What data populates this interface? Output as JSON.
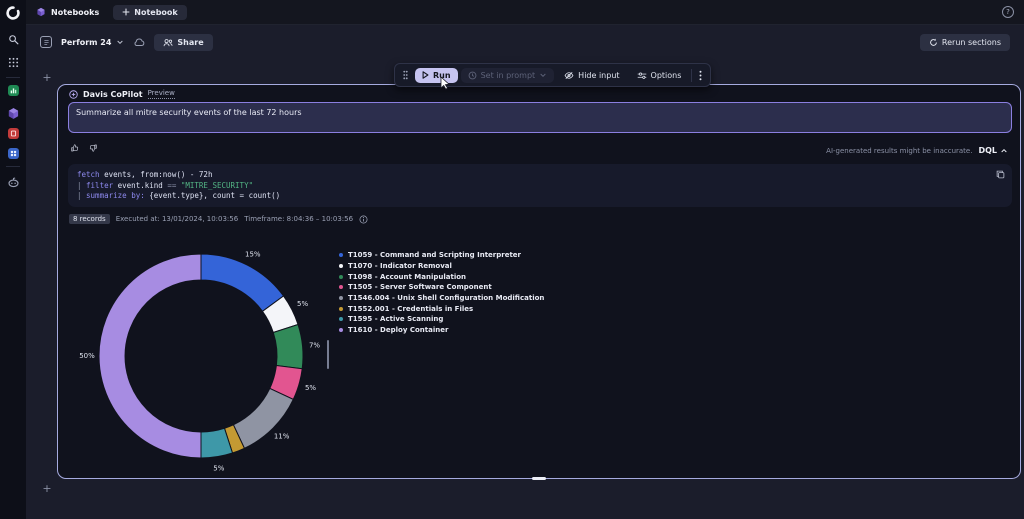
{
  "topbar": {
    "notebooks_tab": "Notebooks",
    "new_notebook_label": "Notebook",
    "help_label": "?"
  },
  "header": {
    "title": "Perform 24",
    "share_label": "Share",
    "rerun_label": "Rerun sections"
  },
  "toolbar": {
    "run_label": "Run",
    "set_in_prompt_label": "Set in prompt",
    "hide_input_label": "Hide input",
    "options_label": "Options"
  },
  "copilot": {
    "title": "Davis CoPilot",
    "badge": "Preview",
    "prompt_value": "Summarize all mitre security events of the last 72 hours",
    "disclaimer": "AI-generated results might be inaccurate.",
    "language_label": "DQL"
  },
  "code": {
    "lines": [
      [
        {
          "c": "kw",
          "t": "fetch"
        },
        {
          "c": "id",
          "t": " events, from:now() - 72h"
        }
      ],
      [
        {
          "c": "pun",
          "t": "| "
        },
        {
          "c": "kw",
          "t": "filter"
        },
        {
          "c": "id",
          "t": " event.kind "
        },
        {
          "c": "pun",
          "t": "== "
        },
        {
          "c": "str",
          "t": "\"MITRE_SECURITY\""
        }
      ],
      [
        {
          "c": "pun",
          "t": "| "
        },
        {
          "c": "kw",
          "t": "summarize"
        },
        {
          "c": "id",
          "t": " "
        },
        {
          "c": "kw",
          "t": "by:"
        },
        {
          "c": "id",
          "t": " {event.type}, count = count()"
        }
      ]
    ]
  },
  "results": {
    "records_badge": "8 records",
    "executed_text": "Executed at: 13/01/2024, 10:03:56",
    "timeframe_text": "Timeframe: 8:04:36 – 10:03:56"
  },
  "chart_data": {
    "type": "pie",
    "subtype": "donut",
    "title": "",
    "unit": "%",
    "legend_position": "right",
    "direction": "clockwise",
    "start_angle_deg": 0,
    "categories": [
      "T1059 - Command and Scripting Interpreter",
      "T1070 - Indicator Removal",
      "T1098 - Account Manipulation",
      "T1505 - Server Software Component",
      "T1546.004 - Unix Shell Configuration Modification",
      "T1552.001 - Credentials in Files",
      "T1595 - Active Scanning",
      "T1610 - Deploy Container"
    ],
    "values": [
      15,
      5,
      7,
      5,
      11,
      2,
      5,
      50
    ],
    "slice_labels": [
      "15%",
      "5%",
      "7%",
      "5%",
      "11%",
      "",
      "5%",
      "50%"
    ],
    "colors": [
      "#3464d8",
      "#f4f5f9",
      "#318a59",
      "#e25590",
      "#8f94a3",
      "#c49a33",
      "#3e98a8",
      "#a78ce2"
    ]
  }
}
